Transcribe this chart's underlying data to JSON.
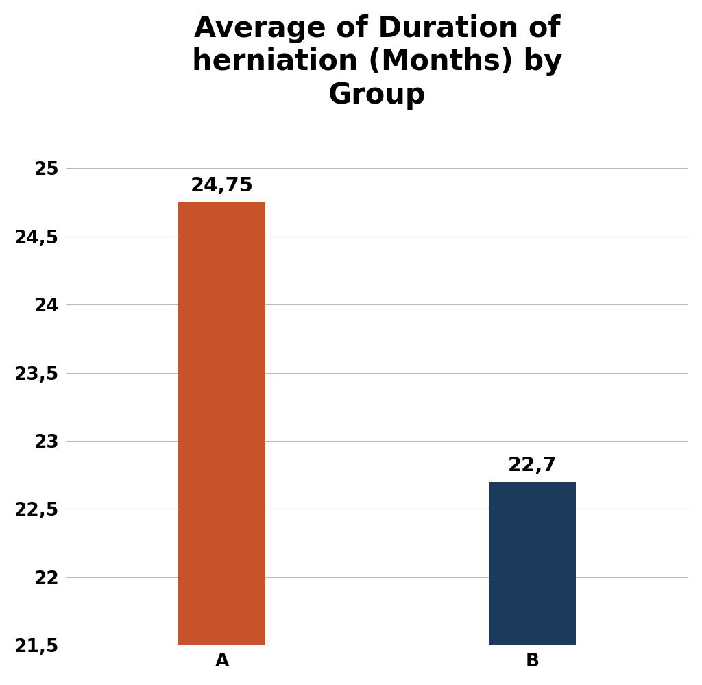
{
  "categories": [
    "A",
    "B"
  ],
  "values": [
    24.75,
    22.7
  ],
  "bar_colors": [
    "#C8522A",
    "#1B3A5C"
  ],
  "value_labels": [
    "24,75",
    "22,7"
  ],
  "title": "Average of Duration of\nherniation (Months) by\nGroup",
  "ylim": [
    21.5,
    25.3
  ],
  "yticks": [
    21.5,
    22.0,
    22.5,
    23.0,
    23.5,
    24.0,
    24.5,
    25.0
  ],
  "ytick_labels": [
    "21,5",
    "22",
    "22,5",
    "23",
    "23,5",
    "24",
    "24,5",
    "25"
  ],
  "title_fontsize": 30,
  "tick_fontsize": 19,
  "label_fontsize": 21,
  "bar_width": 0.28,
  "background_color": "#ffffff",
  "grid_color": "#bbbbbb",
  "x_positions": [
    1,
    2
  ],
  "xlim": [
    0.5,
    2.5
  ]
}
